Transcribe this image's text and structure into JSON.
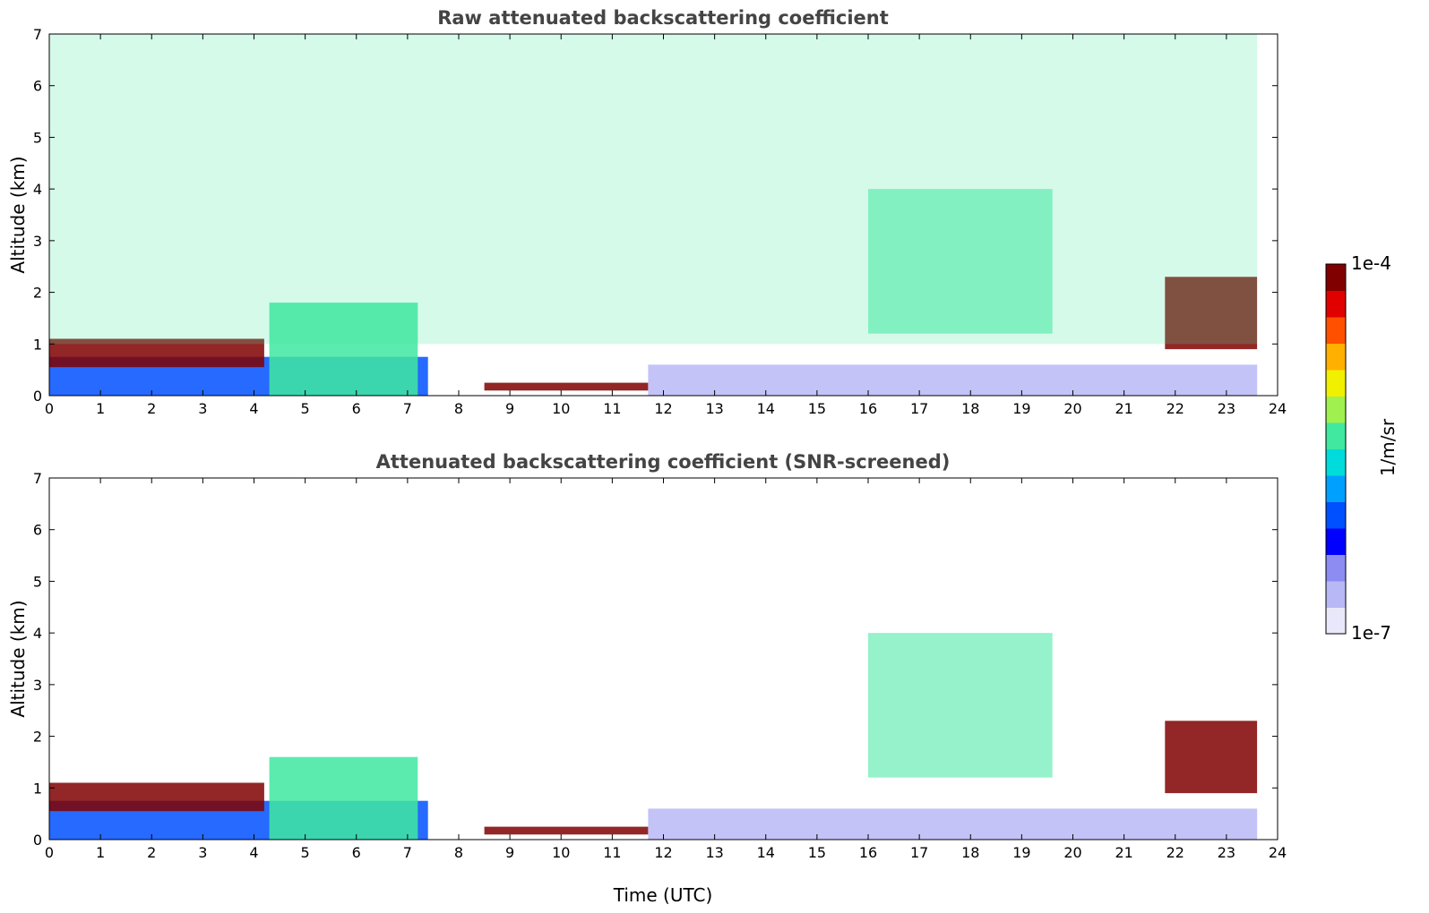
{
  "chart_data": [
    {
      "type": "heatmap",
      "title": "Raw attenuated backscattering coefficient",
      "xlabel": "",
      "ylabel": "Altitude (km)",
      "xlim": [
        0,
        24
      ],
      "ylim": [
        0,
        7
      ],
      "xticks": [
        "0",
        "1",
        "2",
        "3",
        "4",
        "5",
        "6",
        "7",
        "8",
        "9",
        "10",
        "11",
        "12",
        "13",
        "14",
        "15",
        "16",
        "17",
        "18",
        "19",
        "20",
        "21",
        "22",
        "23",
        "24"
      ],
      "yticks": [
        "0",
        "1",
        "2",
        "3",
        "4",
        "5",
        "6",
        "7"
      ],
      "features": [
        {
          "name": "boundary-layer-aerosol",
          "x": [
            0,
            7.4
          ],
          "y": [
            0,
            0.75
          ],
          "log10_value": -6.1
        },
        {
          "name": "morning-low-cloud",
          "x": [
            0,
            4.2
          ],
          "y": [
            0.55,
            1.1
          ],
          "log10_value": -4.1
        },
        {
          "name": "aerosol-plumes",
          "x": [
            4.3,
            7.2
          ],
          "y": [
            0,
            1.8
          ],
          "log10_value": -5.4
        },
        {
          "name": "fog-layer",
          "x": [
            8.5,
            11.7
          ],
          "y": [
            0.1,
            0.25
          ],
          "log10_value": -4.0
        },
        {
          "name": "afternoon-boundary-layer",
          "x": [
            11.7,
            23.6
          ],
          "y": [
            0,
            0.6
          ],
          "log10_value": -6.7
        },
        {
          "name": "mid-level-cloud-streaks",
          "x": [
            16,
            19.6
          ],
          "y": [
            1.2,
            4.0
          ],
          "log10_value": -5.3
        },
        {
          "name": "evening-cloud",
          "x": [
            21.8,
            23.6
          ],
          "y": [
            0.9,
            2.3
          ],
          "log10_value": -4.1
        },
        {
          "name": "free-troposphere-noise",
          "x": [
            0,
            23.6
          ],
          "y": [
            1,
            7
          ],
          "log10_value": -5.5
        }
      ]
    },
    {
      "type": "heatmap",
      "title": "Attenuated backscattering coefficient (SNR-screened)",
      "xlabel": "Time (UTC)",
      "ylabel": "Altitude (km)",
      "xlim": [
        0,
        24
      ],
      "ylim": [
        0,
        7
      ],
      "xticks": [
        "0",
        "1",
        "2",
        "3",
        "4",
        "5",
        "6",
        "7",
        "8",
        "9",
        "10",
        "11",
        "12",
        "13",
        "14",
        "15",
        "16",
        "17",
        "18",
        "19",
        "20",
        "21",
        "22",
        "23",
        "24"
      ],
      "yticks": [
        "0",
        "1",
        "2",
        "3",
        "4",
        "5",
        "6",
        "7"
      ],
      "features": [
        {
          "name": "boundary-layer-aerosol",
          "x": [
            0,
            7.4
          ],
          "y": [
            0,
            0.75
          ],
          "log10_value": -6.1
        },
        {
          "name": "morning-low-cloud",
          "x": [
            0,
            4.2
          ],
          "y": [
            0.55,
            1.1
          ],
          "log10_value": -4.1
        },
        {
          "name": "aerosol-plumes",
          "x": [
            4.3,
            7.2
          ],
          "y": [
            0,
            1.6
          ],
          "log10_value": -5.4
        },
        {
          "name": "fog-layer",
          "x": [
            8.5,
            11.7
          ],
          "y": [
            0.1,
            0.25
          ],
          "log10_value": -4.0
        },
        {
          "name": "afternoon-boundary-layer",
          "x": [
            11.7,
            23.6
          ],
          "y": [
            0,
            0.6
          ],
          "log10_value": -6.7
        },
        {
          "name": "mid-level-cloud-streaks",
          "x": [
            16,
            19.6
          ],
          "y": [
            1.2,
            4.0
          ],
          "log10_value": -5.3
        },
        {
          "name": "evening-cloud",
          "x": [
            21.8,
            23.6
          ],
          "y": [
            0.9,
            2.3
          ],
          "log10_value": -4.1
        }
      ]
    }
  ],
  "colorbar": {
    "label": "1/m/sr",
    "max_label": "1e-4",
    "min_label": "1e-7",
    "range_log10": [
      -7,
      -4
    ],
    "colors": [
      "#e8e8fa",
      "#b8b8f6",
      "#8c8cf2",
      "#0000ff",
      "#0050ff",
      "#00a0ff",
      "#00dcdc",
      "#40e8a0",
      "#a0f050",
      "#f0f000",
      "#ffb000",
      "#ff5000",
      "#e00000",
      "#800000"
    ]
  }
}
